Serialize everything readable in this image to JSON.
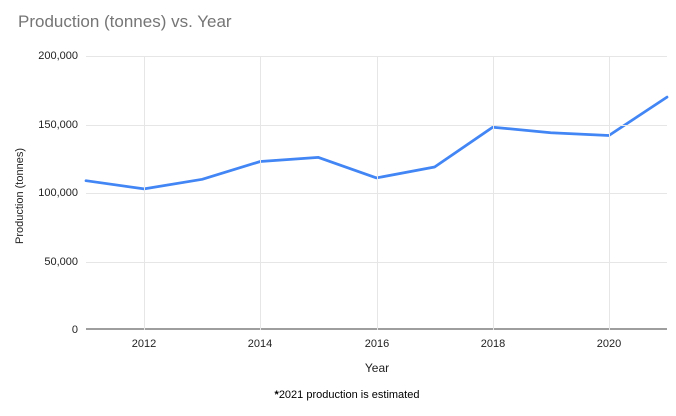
{
  "title": "Production (tonnes) vs. Year",
  "footnote": {
    "marker": "*",
    "text": "2021 production is estimated"
  },
  "colors": {
    "line": "#4285f4",
    "gridline": "#e6e6e6",
    "axis_line": "#9e9e9e",
    "title_text": "#757575",
    "tick_text": "#222222",
    "footnote_text": "#000000",
    "background": "#ffffff"
  },
  "chart_data": {
    "type": "line",
    "title": "Production (tonnes) vs. Year",
    "xlabel": "Year",
    "ylabel": "Production (tonnes)",
    "x": [
      2011,
      2012,
      2013,
      2014,
      2015,
      2016,
      2017,
      2018,
      2019,
      2020,
      2021
    ],
    "series": [
      {
        "name": "Production (tonnes)",
        "values": [
          109000,
          103000,
          110000,
          123000,
          126000,
          111000,
          119000,
          148000,
          144000,
          142000,
          170000
        ],
        "color": "#4285f4"
      }
    ],
    "xlim": [
      2011,
      2021
    ],
    "ylim": [
      0,
      200000
    ],
    "y_ticks": [
      0,
      50000,
      100000,
      150000,
      200000
    ],
    "y_tick_labels": [
      "0",
      "50,000",
      "100,000",
      "150,000",
      "200,000"
    ],
    "x_ticks": [
      2012,
      2014,
      2016,
      2018,
      2020
    ],
    "x_tick_labels": [
      "2012",
      "2014",
      "2016",
      "2018",
      "2020"
    ],
    "grid": true,
    "legend_position": "none",
    "annotation": "*2021 production is estimated"
  }
}
